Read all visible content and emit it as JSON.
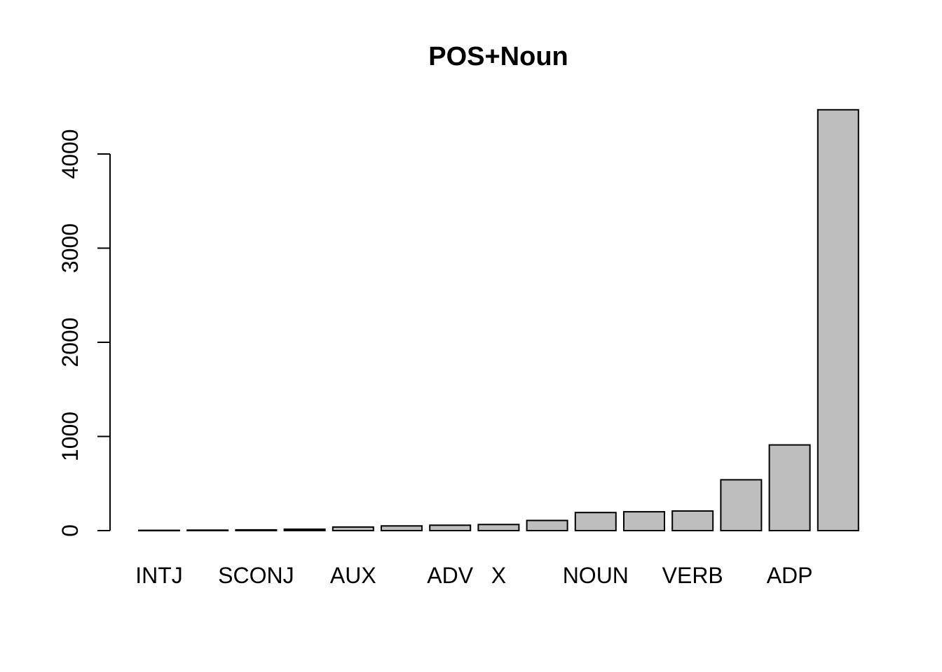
{
  "chart_data": {
    "type": "bar",
    "title": "POS+Noun",
    "xlabel": "",
    "ylabel": "",
    "ylim": [
      0,
      4470
    ],
    "yticks": [
      0,
      1000,
      2000,
      3000,
      4000
    ],
    "categories": [
      "INTJ",
      "",
      "SCONJ",
      "",
      "AUX",
      "",
      "ADV",
      "X",
      "",
      "NOUN",
      "",
      "VERB",
      "",
      "ADP",
      ""
    ],
    "values": [
      3,
      5,
      8,
      15,
      38,
      50,
      57,
      65,
      108,
      192,
      200,
      208,
      540,
      910,
      4470
    ],
    "grid": false,
    "legend": "none",
    "bar_color": "#bebebe"
  }
}
